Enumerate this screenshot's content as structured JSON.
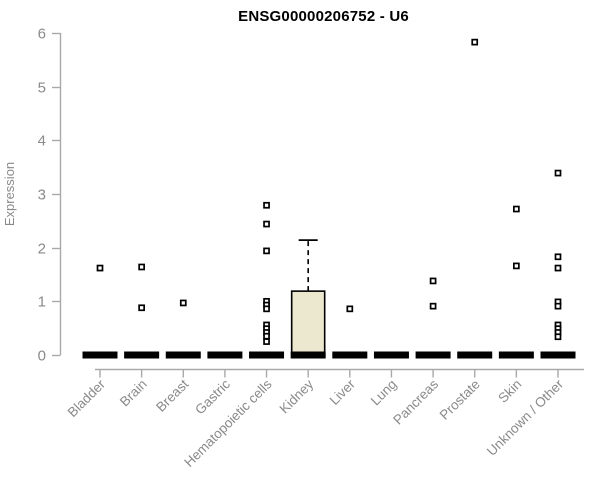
{
  "chart_data": {
    "type": "boxplot",
    "title": "ENSG00000206752 - U6",
    "ylabel": "Expression",
    "ylim": [
      0,
      6
    ],
    "yticks": [
      0,
      1,
      2,
      3,
      4,
      5,
      6
    ],
    "grid": false,
    "legend": "none",
    "categories": [
      "Bladder",
      "Brain",
      "Breast",
      "Gastric",
      "Hematopoietic cells",
      "Kidney",
      "Liver",
      "Lung",
      "Pancreas",
      "Prostate",
      "Skin",
      "Unknown / Other"
    ],
    "series": [
      {
        "category": "Bladder",
        "q1": 0,
        "median": 0,
        "q3": 0,
        "whisker_low": 0,
        "whisker_high": 0,
        "outliers": [
          1.62
        ]
      },
      {
        "category": "Brain",
        "q1": 0,
        "median": 0,
        "q3": 0,
        "whisker_low": 0,
        "whisker_high": 0,
        "outliers": [
          1.64,
          0.88
        ]
      },
      {
        "category": "Breast",
        "q1": 0,
        "median": 0,
        "q3": 0,
        "whisker_low": 0,
        "whisker_high": 0,
        "outliers": [
          0.97
        ]
      },
      {
        "category": "Gastric",
        "q1": 0,
        "median": 0,
        "q3": 0,
        "whisker_low": 0,
        "whisker_high": 0,
        "outliers": []
      },
      {
        "category": "Hematopoietic cells",
        "q1": 0,
        "median": 0,
        "q3": 0,
        "whisker_low": 0,
        "whisker_high": 0,
        "outliers": [
          2.79,
          2.44,
          1.94,
          1.0,
          0.93,
          0.86,
          0.56,
          0.49,
          0.42,
          0.35,
          0.25
        ]
      },
      {
        "category": "Kidney",
        "q1": 0,
        "median": 0,
        "q3": 1.19,
        "whisker_low": 0,
        "whisker_high": 2.14,
        "outliers": []
      },
      {
        "category": "Liver",
        "q1": 0,
        "median": 0,
        "q3": 0,
        "whisker_low": 0,
        "whisker_high": 0,
        "outliers": [
          0.86
        ]
      },
      {
        "category": "Lung",
        "q1": 0,
        "median": 0,
        "q3": 0,
        "whisker_low": 0,
        "whisker_high": 0,
        "outliers": []
      },
      {
        "category": "Pancreas",
        "q1": 0,
        "median": 0,
        "q3": 0,
        "whisker_low": 0,
        "whisker_high": 0,
        "outliers": [
          1.38,
          0.91
        ]
      },
      {
        "category": "Prostate",
        "q1": 0,
        "median": 0,
        "q3": 0,
        "whisker_low": 0,
        "whisker_high": 0,
        "outliers": [
          5.83
        ]
      },
      {
        "category": "Skin",
        "q1": 0,
        "median": 0,
        "q3": 0,
        "whisker_low": 0,
        "whisker_high": 0,
        "outliers": [
          2.72,
          1.66
        ]
      },
      {
        "category": "Unknown / Other",
        "q1": 0,
        "median": 0,
        "q3": 0,
        "whisker_low": 0,
        "whisker_high": 0,
        "outliers": [
          3.39,
          1.83,
          1.62,
          0.99,
          0.91,
          0.56,
          0.49,
          0.42,
          0.34
        ]
      }
    ],
    "colors": {
      "box_fill": "#ece8cf",
      "box_stroke": "#000000",
      "axis": "#a9a9a9",
      "tick_text": "#8a8a8a",
      "title_text": "#000000",
      "background": "#ffffff"
    }
  }
}
